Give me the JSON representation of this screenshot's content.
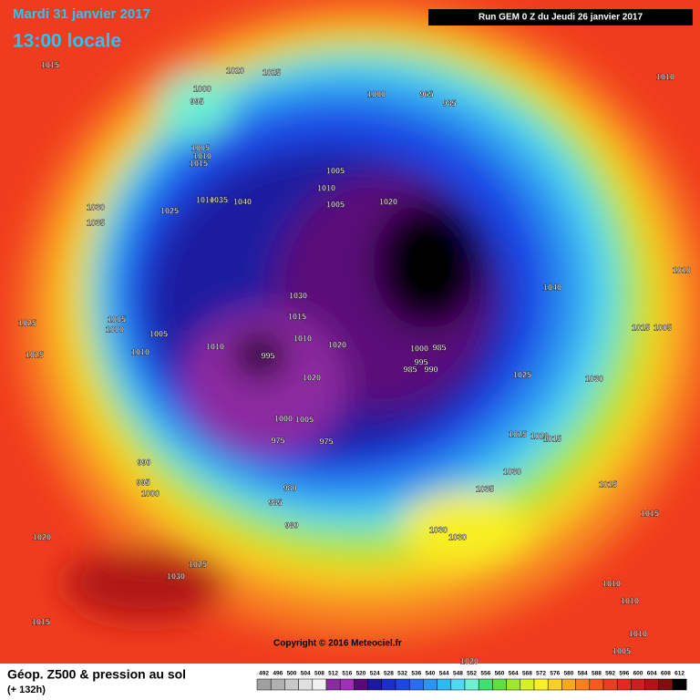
{
  "header": {
    "date": "Mardi 31 janvier 2017",
    "time": "13:00 locale",
    "run": "Run GEM 0 Z du Jeudi 26 janvier 2017"
  },
  "footer": {
    "title": "Géop. Z500 & pression au sol",
    "lead": "(+ 132h)",
    "copyright": "Copyright © 2016 Meteociel.fr"
  },
  "legend": {
    "labels": [
      492,
      496,
      500,
      504,
      508,
      512,
      516,
      520,
      524,
      528,
      532,
      536,
      540,
      544,
      548,
      552,
      556,
      560,
      564,
      568,
      572,
      576,
      580,
      584,
      588,
      592,
      596,
      600,
      604,
      608,
      612
    ],
    "colors": [
      "#a0a0a0",
      "#b0b0b0",
      "#c8c8c8",
      "#e0e0e0",
      "#f0f0f0",
      "#8c2aa0",
      "#a030b8",
      "#5a0a78",
      "#1a1aa0",
      "#1e2ec8",
      "#1e46e6",
      "#2a6cf0",
      "#2c94f0",
      "#30b8f0",
      "#50d8f0",
      "#70f0d0",
      "#40e070",
      "#60e040",
      "#a0e830",
      "#d8f020",
      "#f8f020",
      "#f8d020",
      "#f8a820",
      "#f88020",
      "#f85a1e",
      "#f03c1e",
      "#e8281e",
      "#d01e1e",
      "#b01414",
      "#801010",
      "#000000"
    ]
  },
  "isobar_labels": [
    "1015",
    "1020",
    "1025",
    "1000",
    "995",
    "1005",
    "1010",
    "1015",
    "1010",
    "1035",
    "1040",
    "1025",
    "1030",
    "1035",
    "1005",
    "1010",
    "1005",
    "1020",
    "965",
    "1000",
    "985",
    "1010",
    "1010",
    "1040",
    "1015",
    "1005",
    "1030",
    "1015",
    "1010",
    "1020",
    "995",
    "1010",
    "1005",
    "1000",
    "1005",
    "1010",
    "1025",
    "1025",
    "1000",
    "985",
    "995",
    "990",
    "985",
    "1020",
    "1025",
    "1030",
    "1025",
    "1020",
    "1015",
    "1030",
    "1035",
    "1015",
    "1000",
    "975",
    "1005",
    "975",
    "990",
    "995",
    "1000",
    "980",
    "985",
    "980",
    "1020",
    "1030",
    "1025",
    "1030",
    "1030",
    "1015",
    "1010",
    "1010",
    "1010",
    "1005",
    "1015",
    "1020"
  ]
}
